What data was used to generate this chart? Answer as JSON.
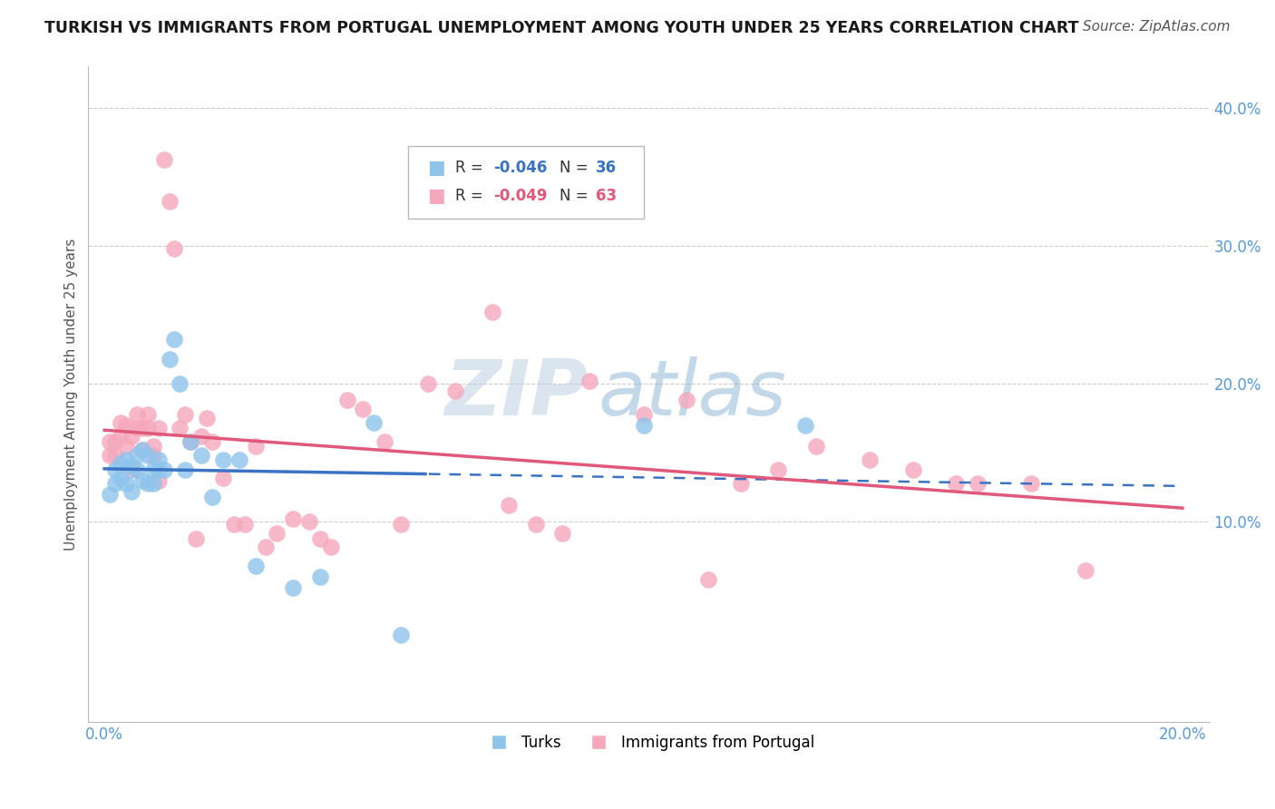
{
  "title": "TURKISH VS IMMIGRANTS FROM PORTUGAL UNEMPLOYMENT AMONG YOUTH UNDER 25 YEARS CORRELATION CHART",
  "source": "Source: ZipAtlas.com",
  "ylabel": "Unemployment Among Youth under 25 years",
  "xlim": [
    -0.003,
    0.205
  ],
  "ylim": [
    -0.045,
    0.43
  ],
  "legend_r_blue": "-0.046",
  "legend_n_blue": "36",
  "legend_r_pink": "-0.049",
  "legend_n_pink": "63",
  "color_blue": "#8EC4EC",
  "color_pink": "#F5A8BC",
  "color_blue_line": "#3A72C4",
  "color_pink_line": "#E0587A",
  "watermark_zip": "ZIP",
  "watermark_atlas": "atlas",
  "title_color": "#1a1a1a",
  "source_color": "#555555",
  "axis_tick_color": "#5599DD",
  "ylabel_color": "#555555",
  "grid_color": "#CCCCCC",
  "turks_x": [
    0.001,
    0.002,
    0.002,
    0.003,
    0.003,
    0.004,
    0.004,
    0.005,
    0.005,
    0.006,
    0.006,
    0.007,
    0.007,
    0.008,
    0.008,
    0.009,
    0.009,
    0.01,
    0.01,
    0.011,
    0.012,
    0.013,
    0.014,
    0.015,
    0.016,
    0.018,
    0.02,
    0.022,
    0.025,
    0.028,
    0.035,
    0.04,
    0.05,
    0.055,
    0.1,
    0.13
  ],
  "turks_y": [
    0.12,
    0.128,
    0.138,
    0.132,
    0.142,
    0.128,
    0.145,
    0.122,
    0.14,
    0.138,
    0.148,
    0.13,
    0.152,
    0.128,
    0.148,
    0.128,
    0.138,
    0.145,
    0.138,
    0.138,
    0.218,
    0.232,
    0.2,
    0.138,
    0.158,
    0.148,
    0.118,
    0.145,
    0.145,
    0.068,
    0.052,
    0.06,
    0.172,
    0.018,
    0.17,
    0.17
  ],
  "portugal_x": [
    0.001,
    0.001,
    0.002,
    0.002,
    0.003,
    0.003,
    0.004,
    0.004,
    0.005,
    0.005,
    0.006,
    0.006,
    0.007,
    0.007,
    0.008,
    0.008,
    0.009,
    0.009,
    0.01,
    0.01,
    0.011,
    0.012,
    0.013,
    0.014,
    0.015,
    0.016,
    0.017,
    0.018,
    0.019,
    0.02,
    0.022,
    0.024,
    0.026,
    0.028,
    0.03,
    0.032,
    0.035,
    0.038,
    0.04,
    0.042,
    0.045,
    0.048,
    0.052,
    0.055,
    0.06,
    0.065,
    0.072,
    0.075,
    0.08,
    0.085,
    0.09,
    0.1,
    0.108,
    0.112,
    0.118,
    0.125,
    0.132,
    0.142,
    0.15,
    0.158,
    0.162,
    0.172,
    0.182
  ],
  "portugal_y": [
    0.148,
    0.158,
    0.158,
    0.148,
    0.162,
    0.172,
    0.17,
    0.155,
    0.138,
    0.162,
    0.168,
    0.178,
    0.152,
    0.168,
    0.168,
    0.178,
    0.148,
    0.155,
    0.13,
    0.168,
    0.362,
    0.332,
    0.298,
    0.168,
    0.178,
    0.158,
    0.088,
    0.162,
    0.175,
    0.158,
    0.132,
    0.098,
    0.098,
    0.155,
    0.082,
    0.092,
    0.102,
    0.1,
    0.088,
    0.082,
    0.188,
    0.182,
    0.158,
    0.098,
    0.2,
    0.195,
    0.252,
    0.112,
    0.098,
    0.092,
    0.202,
    0.178,
    0.188,
    0.058,
    0.128,
    0.138,
    0.155,
    0.145,
    0.138,
    0.128,
    0.128,
    0.128,
    0.065
  ]
}
